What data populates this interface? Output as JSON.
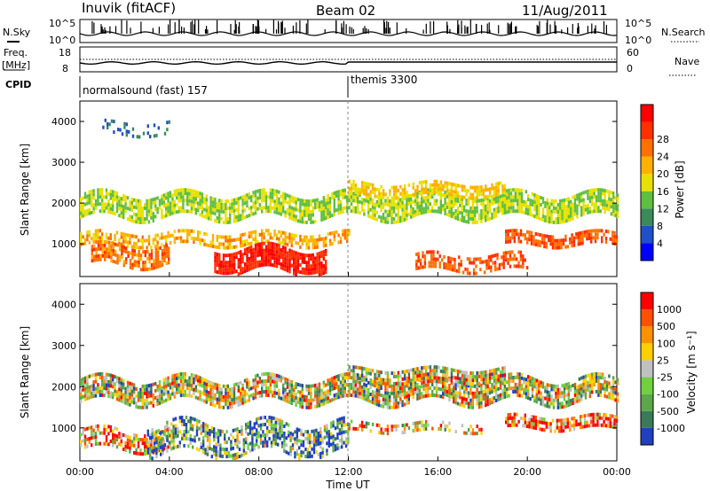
{
  "header": {
    "station": "Inuvik (fitACF)",
    "beam": "Beam 02",
    "date": "11/Aug/2011"
  },
  "labels": {
    "nsky": "N.Sky",
    "nsearch": "N.Search",
    "freq_top": "Freq.",
    "freq_unit": "[MHz]",
    "nave": "Nave",
    "cpid": "CPID"
  },
  "sky_axis": {
    "top": "10^5",
    "bottom": "10^0"
  },
  "freq_axis": {
    "left_top": "18",
    "left_bottom": "8",
    "right_top": "60",
    "right_bottom": "0"
  },
  "cpid_items": [
    {
      "label": "normalsound (fast) 157",
      "start_hour": 0
    },
    {
      "label": "themis 3300",
      "start_hour": 12
    }
  ],
  "colors": {
    "power_scale": [
      "#0000ff",
      "#2050c8",
      "#3a8a5a",
      "#5fbf3f",
      "#e8e000",
      "#ffb000",
      "#ff7000",
      "#ff3000",
      "#ff0000"
    ],
    "velocity_scale": [
      "#2040c0",
      "#3a7a5a",
      "#5aa84a",
      "#70d040",
      "#c0c0c0",
      "#ffd000",
      "#ff9000",
      "#ff5000",
      "#ff0000"
    ],
    "ground_scatter": "#bcbcbc"
  },
  "chart_data": [
    {
      "type": "heatmap",
      "name": "power",
      "ylabel": "Slant Range [km]",
      "yticks": [
        "1000",
        "2000",
        "3000",
        "4000"
      ],
      "ylim": [
        200,
        4500
      ],
      "xlim": [
        0,
        24
      ],
      "colorbar_label": "Power [dB]",
      "colorbar_ticks": [
        "4",
        "8",
        "12",
        "16",
        "20",
        "24",
        "28"
      ],
      "colorbar_range": [
        0,
        32
      ],
      "bands": [
        {
          "h0": 0,
          "h1": 24,
          "r_center": 1900,
          "r_width": 280,
          "v": 14,
          "density": 0.8
        },
        {
          "h0": 0,
          "h1": 12,
          "r_center": 1100,
          "r_width": 160,
          "v": 20,
          "density": 0.6
        },
        {
          "h0": 0.5,
          "h1": 4,
          "r_center": 700,
          "r_width": 250,
          "v": 24,
          "density": 0.7
        },
        {
          "h0": 6,
          "h1": 11,
          "r_center": 600,
          "r_width": 300,
          "v": 30,
          "density": 0.9
        },
        {
          "h0": 12,
          "h1": 19,
          "r_center": 2300,
          "r_width": 150,
          "v": 18,
          "density": 0.7
        },
        {
          "h0": 15,
          "h1": 20,
          "r_center": 500,
          "r_width": 180,
          "v": 26,
          "density": 0.6
        },
        {
          "h0": 19,
          "h1": 24,
          "r_center": 1100,
          "r_width": 160,
          "v": 26,
          "density": 0.7
        },
        {
          "h0": 1,
          "h1": 4,
          "r_center": 3800,
          "r_width": 150,
          "v": 6,
          "density": 0.3
        }
      ]
    },
    {
      "type": "heatmap",
      "name": "velocity",
      "xlabel": "Time UT",
      "xticks": [
        "00:00",
        "04:00",
        "08:00",
        "12:00",
        "16:00",
        "20:00",
        "00:00"
      ],
      "ylabel": "Slant Range [km]",
      "yticks": [
        "1000",
        "2000",
        "3000",
        "4000"
      ],
      "ylim": [
        200,
        4500
      ],
      "xlim": [
        0,
        24
      ],
      "colorbar_label": "Velocity [m s⁻¹]",
      "colorbar_ticks": [
        "1000",
        "500",
        "100",
        "25",
        "-25",
        "-100",
        "-500",
        "-1000"
      ],
      "bands": [
        {
          "h0": 0,
          "h1": 24,
          "r_center": 1900,
          "r_width": 300,
          "v": 4,
          "density": 0.8
        },
        {
          "h0": 0,
          "h1": 4,
          "r_center": 700,
          "r_width": 250,
          "v": 6,
          "density": 0.6
        },
        {
          "h0": 3,
          "h1": 12,
          "r_center": 700,
          "r_width": 350,
          "v": 2,
          "density": 0.6
        },
        {
          "h0": 12,
          "h1": 19,
          "r_center": 2250,
          "r_width": 150,
          "v": 4,
          "density": 0.8
        },
        {
          "h0": 19,
          "h1": 24,
          "r_center": 1100,
          "r_width": 150,
          "v": 7,
          "density": 0.7
        },
        {
          "h0": 12,
          "h1": 18,
          "r_center": 1000,
          "r_width": 120,
          "v": 5,
          "density": 0.4
        }
      ]
    }
  ]
}
